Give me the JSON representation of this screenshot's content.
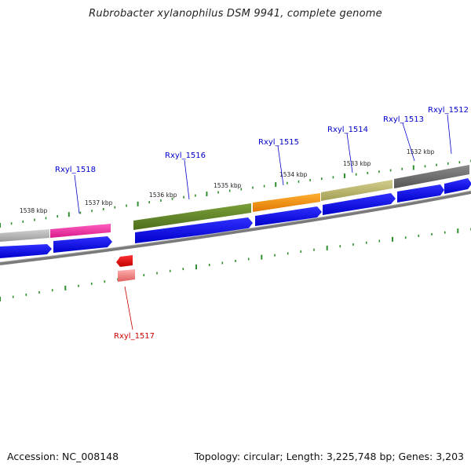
{
  "title": "Rubrobacter xylanophilus DSM 9941, complete genome",
  "footer": {
    "accession": "Accession: NC_008148",
    "topology": "Topology: circular; Length: 3,225,748 bp; Genes: 3,203"
  },
  "tick_labels": [
    "1538 kbp",
    "1537 kbp",
    "1536 kbp",
    "1535 kbp",
    "1534 kbp",
    "1533 kbp",
    "1532 kbp"
  ],
  "genes": [
    {
      "name": "Rxyl_1518",
      "strand": "forward",
      "color": "#0000cc"
    },
    {
      "name": "Rxyl_1516",
      "strand": "forward",
      "color": "#0000cc"
    },
    {
      "name": "Rxyl_1515",
      "strand": "forward",
      "color": "#0000cc"
    },
    {
      "name": "Rxyl_1514",
      "strand": "forward",
      "color": "#0000cc"
    },
    {
      "name": "Rxyl_1513",
      "strand": "forward",
      "color": "#0000cc"
    },
    {
      "name": "Rxyl_1512",
      "strand": "forward",
      "color": "#0000cc"
    },
    {
      "name": "Rxyl_1517",
      "strand": "reverse",
      "color": "#cc0000"
    }
  ],
  "colors": {
    "forward_arrow": "#0000ee",
    "reverse_arrow": "#dd0000",
    "tick": "#2f8f2f",
    "backbone": "#888888"
  }
}
